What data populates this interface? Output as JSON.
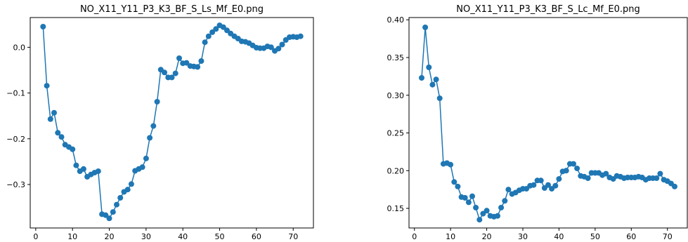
{
  "figure": {
    "series_color": "#1f77b4"
  },
  "chart_data": [
    {
      "type": "line",
      "title": "NO_X11_Y11_P3_K3_BF_S_Ls_Mf_E0.png",
      "xlabel": "",
      "ylabel": "",
      "xlim": [
        -1.5,
        75.5
      ],
      "ylim": [
        -0.395,
        0.065
      ],
      "xticks": [
        0,
        10,
        20,
        30,
        40,
        50,
        60,
        70
      ],
      "yticks": [
        -0.3,
        -0.2,
        -0.1,
        0.0
      ],
      "ytick_labels": [
        "−0.3",
        "−0.2",
        "−0.1",
        "0.0"
      ],
      "grid": false,
      "markers": true,
      "x": [
        2,
        3,
        4,
        5,
        6,
        7,
        8,
        9,
        10,
        11,
        12,
        13,
        14,
        15,
        16,
        17,
        18,
        19,
        20,
        21,
        22,
        23,
        24,
        25,
        26,
        27,
        28,
        29,
        30,
        31,
        32,
        33,
        34,
        35,
        36,
        37,
        38,
        39,
        40,
        41,
        42,
        43,
        44,
        45,
        46,
        47,
        48,
        49,
        50,
        51,
        52,
        53,
        54,
        55,
        56,
        57,
        58,
        59,
        60,
        61,
        62,
        63,
        64,
        65,
        66,
        67,
        68,
        69,
        70,
        71,
        72
      ],
      "y": [
        0.045,
        -0.084,
        -0.157,
        -0.143,
        -0.187,
        -0.196,
        -0.213,
        -0.218,
        -0.223,
        -0.258,
        -0.271,
        -0.266,
        -0.283,
        -0.278,
        -0.274,
        -0.271,
        -0.365,
        -0.367,
        -0.374,
        -0.36,
        -0.344,
        -0.329,
        -0.316,
        -0.311,
        -0.299,
        -0.27,
        -0.266,
        -0.262,
        -0.243,
        -0.198,
        -0.172,
        -0.119,
        -0.049,
        -0.055,
        -0.066,
        -0.066,
        -0.057,
        -0.024,
        -0.035,
        -0.034,
        -0.041,
        -0.042,
        -0.043,
        -0.03,
        0.011,
        0.024,
        0.033,
        0.04,
        0.048,
        0.044,
        0.037,
        0.03,
        0.024,
        0.019,
        0.013,
        0.012,
        0.009,
        0.004,
        -0.001,
        -0.002,
        -0.002,
        0.002,
        0.0,
        -0.008,
        -0.003,
        0.006,
        0.016,
        0.022,
        0.023,
        0.022,
        0.024
      ]
    },
    {
      "type": "line",
      "title": "NO_X11_Y11_P3_K3_BF_S_Lc_Mf_E0.png",
      "xlabel": "",
      "ylabel": "",
      "xlim": [
        -1.5,
        75.5
      ],
      "ylim": [
        0.124,
        0.403
      ],
      "xticks": [
        0,
        10,
        20,
        30,
        40,
        50,
        60,
        70
      ],
      "yticks": [
        0.15,
        0.2,
        0.25,
        0.3,
        0.35,
        0.4
      ],
      "ytick_labels": [
        "0.15",
        "0.20",
        "0.25",
        "0.30",
        "0.35",
        "0.40"
      ],
      "grid": false,
      "markers": true,
      "x": [
        2,
        3,
        4,
        5,
        6,
        7,
        8,
        9,
        10,
        11,
        12,
        13,
        14,
        15,
        16,
        17,
        18,
        19,
        20,
        21,
        22,
        23,
        24,
        25,
        26,
        27,
        28,
        29,
        30,
        31,
        32,
        33,
        34,
        35,
        36,
        37,
        38,
        39,
        40,
        41,
        42,
        43,
        44,
        45,
        46,
        47,
        48,
        49,
        50,
        51,
        52,
        53,
        54,
        55,
        56,
        57,
        58,
        59,
        60,
        61,
        62,
        63,
        64,
        65,
        66,
        67,
        68,
        69,
        70,
        71,
        72
      ],
      "y": [
        0.323,
        0.39,
        0.337,
        0.314,
        0.321,
        0.296,
        0.209,
        0.21,
        0.208,
        0.185,
        0.179,
        0.165,
        0.164,
        0.158,
        0.166,
        0.151,
        0.135,
        0.143,
        0.147,
        0.14,
        0.139,
        0.14,
        0.151,
        0.16,
        0.175,
        0.169,
        0.171,
        0.174,
        0.176,
        0.176,
        0.18,
        0.181,
        0.187,
        0.187,
        0.177,
        0.181,
        0.176,
        0.18,
        0.189,
        0.199,
        0.2,
        0.209,
        0.209,
        0.203,
        0.193,
        0.192,
        0.19,
        0.197,
        0.197,
        0.197,
        0.194,
        0.196,
        0.191,
        0.189,
        0.193,
        0.192,
        0.19,
        0.191,
        0.191,
        0.191,
        0.192,
        0.191,
        0.188,
        0.19,
        0.19,
        0.19,
        0.196,
        0.188,
        0.186,
        0.183,
        0.179
      ]
    }
  ]
}
